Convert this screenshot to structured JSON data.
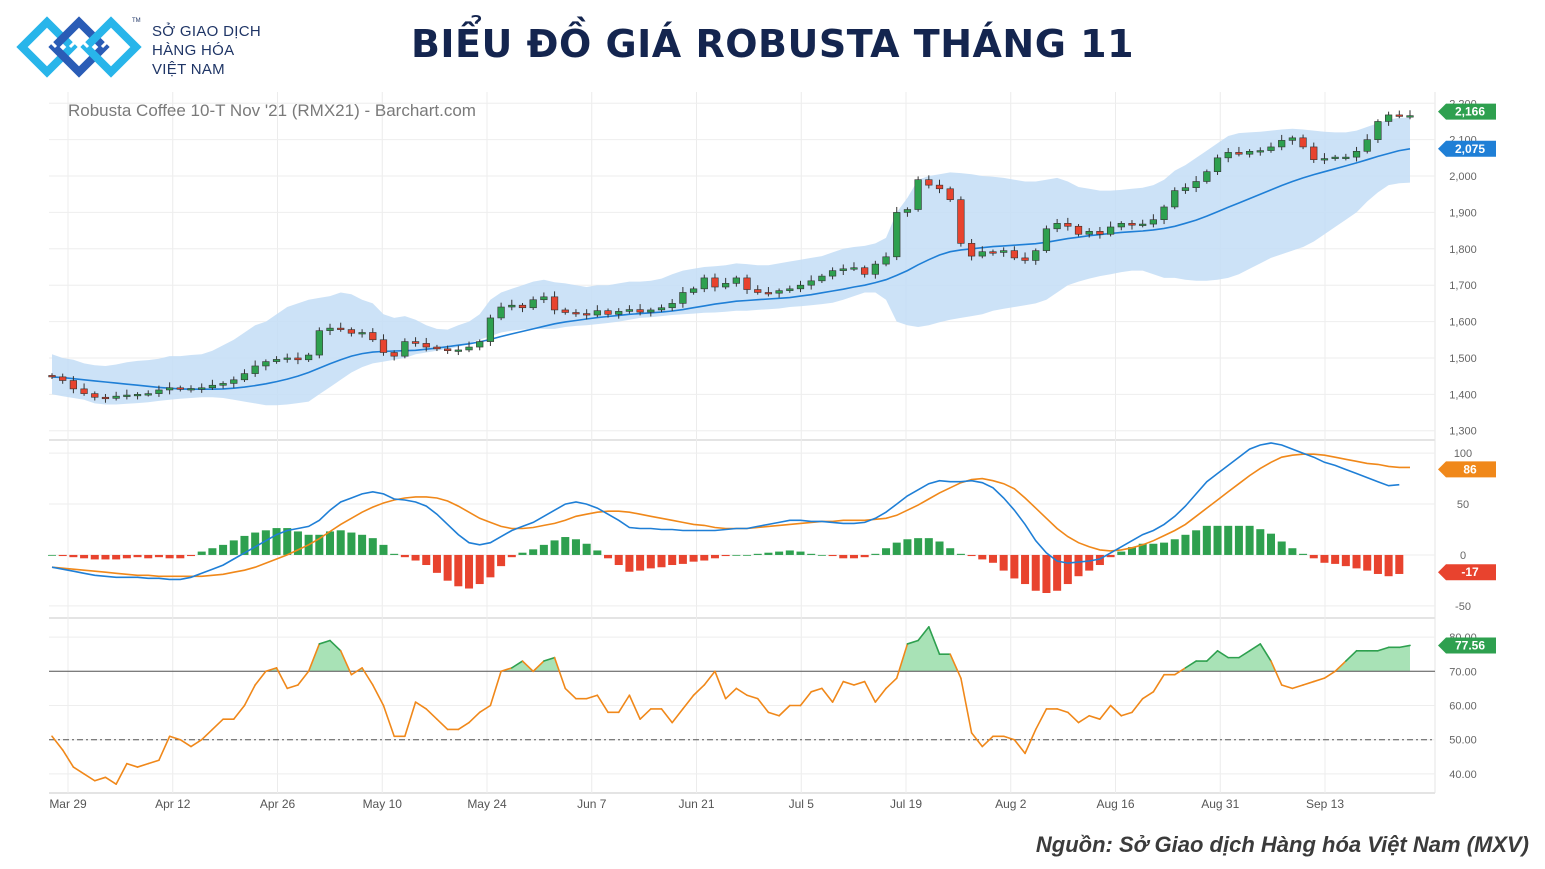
{
  "header": {
    "logo_lines": [
      "SỞ GIAO DỊCH",
      "HÀNG HÓA",
      "VIỆT NAM"
    ],
    "logo_tm": "TM",
    "title": "BIỂU ĐỒ GIÁ ROBUSTA THÁNG 11"
  },
  "footer": {
    "source": "Nguồn: Sở Giao dịch Hàng hóa Việt Nam (MXV)"
  },
  "colors": {
    "up": "#2ea04f",
    "down": "#e8432e",
    "band": "#c3ddf6",
    "ma": "#1f7fd6",
    "macd": "#1f7fd6",
    "signal": "#f0881a",
    "rsi": "#f0881a",
    "rsi_fill": "#a8e2b6"
  },
  "chart_data": [
    {
      "type": "candlestick",
      "title": "Robusta Coffee 10-T Nov '21 (RMX21) - Barchart.com",
      "ylim": [
        1280,
        2220
      ],
      "y_ticks": [
        "2,200",
        "2,100",
        "2,000",
        "1,900",
        "1,800",
        "1,700",
        "1,600",
        "1,500",
        "1,400",
        "1,300"
      ],
      "x_labels": [
        "Mar 29",
        "Apr 12",
        "Apr 26",
        "May 10",
        "May 24",
        "Jun 7",
        "Jun 21",
        "Jul 5",
        "Jul 19",
        "Aug 2",
        "Aug 16",
        "Aug 31",
        "Sep 13"
      ],
      "close": [
        1448,
        1438,
        1415,
        1402,
        1392,
        1389,
        1395,
        1398,
        1400,
        1402,
        1412,
        1418,
        1414,
        1416,
        1418,
        1425,
        1430,
        1440,
        1457,
        1478,
        1490,
        1496,
        1500,
        1495,
        1508,
        1575,
        1582,
        1578,
        1568,
        1570,
        1550,
        1515,
        1505,
        1545,
        1540,
        1530,
        1525,
        1520,
        1522,
        1530,
        1545,
        1610,
        1640,
        1645,
        1638,
        1660,
        1668,
        1632,
        1625,
        1622,
        1618,
        1630,
        1620,
        1628,
        1633,
        1626,
        1632,
        1638,
        1650,
        1680,
        1690,
        1720,
        1695,
        1705,
        1720,
        1688,
        1680,
        1678,
        1685,
        1690,
        1700,
        1712,
        1725,
        1740,
        1745,
        1748,
        1730,
        1758,
        1778,
        1900,
        1908,
        1990,
        1975,
        1965,
        1935,
        1815,
        1780,
        1792,
        1790,
        1795,
        1775,
        1768,
        1795,
        1855,
        1870,
        1862,
        1840,
        1848,
        1840,
        1860,
        1870,
        1865,
        1868,
        1880,
        1915,
        1960,
        1968,
        1985,
        2012,
        2050,
        2065,
        2060,
        2068,
        2070,
        2080,
        2098,
        2105,
        2080,
        2045,
        2048,
        2052,
        2052,
        2068,
        2100,
        2150,
        2168,
        2165,
        2166
      ],
      "prev_close_start": 1452,
      "band_upper": [
        1510,
        1500,
        1495,
        1485,
        1480,
        1478,
        1482,
        1488,
        1492,
        1494,
        1498,
        1505,
        1505,
        1508,
        1510,
        1520,
        1535,
        1550,
        1570,
        1590,
        1600,
        1620,
        1640,
        1650,
        1660,
        1665,
        1670,
        1680,
        1675,
        1660,
        1650,
        1620,
        1610,
        1615,
        1605,
        1590,
        1580,
        1578,
        1590,
        1600,
        1620,
        1660,
        1680,
        1690,
        1700,
        1710,
        1715,
        1708,
        1705,
        1700,
        1695,
        1700,
        1700,
        1705,
        1710,
        1710,
        1712,
        1718,
        1730,
        1740,
        1745,
        1750,
        1752,
        1755,
        1760,
        1758,
        1755,
        1755,
        1760,
        1765,
        1770,
        1775,
        1780,
        1790,
        1800,
        1805,
        1808,
        1815,
        1830,
        1900,
        1940,
        1990,
        2000,
        2005,
        2010,
        2008,
        2005,
        2000,
        1998,
        1995,
        1990,
        1985,
        1985,
        1990,
        1995,
        1985,
        1970,
        1965,
        1960,
        1960,
        1962,
        1965,
        1968,
        1975,
        1990,
        2015,
        2030,
        2050,
        2070,
        2090,
        2110,
        2118,
        2120,
        2122,
        2125,
        2128,
        2130,
        2128,
        2125,
        2122,
        2120,
        2120,
        2125,
        2135,
        2145,
        2155,
        2160,
        2160
      ],
      "band_lower": [
        1400,
        1395,
        1390,
        1385,
        1375,
        1372,
        1372,
        1374,
        1376,
        1378,
        1382,
        1385,
        1388,
        1390,
        1392,
        1392,
        1390,
        1385,
        1380,
        1375,
        1370,
        1370,
        1372,
        1376,
        1380,
        1400,
        1420,
        1440,
        1460,
        1475,
        1485,
        1490,
        1495,
        1500,
        1510,
        1515,
        1520,
        1525,
        1530,
        1540,
        1550,
        1560,
        1570,
        1575,
        1578,
        1580,
        1580,
        1580,
        1585,
        1588,
        1590,
        1593,
        1596,
        1600,
        1605,
        1610,
        1612,
        1615,
        1618,
        1620,
        1622,
        1624,
        1625,
        1627,
        1630,
        1630,
        1632,
        1634,
        1636,
        1640,
        1642,
        1645,
        1648,
        1652,
        1660,
        1670,
        1680,
        1680,
        1660,
        1600,
        1590,
        1585,
        1590,
        1598,
        1605,
        1610,
        1615,
        1620,
        1630,
        1635,
        1640,
        1645,
        1650,
        1660,
        1680,
        1700,
        1710,
        1718,
        1725,
        1730,
        1736,
        1740,
        1740,
        1730,
        1720,
        1720,
        1715,
        1712,
        1712,
        1715,
        1720,
        1730,
        1745,
        1760,
        1775,
        1785,
        1795,
        1805,
        1820,
        1840,
        1860,
        1880,
        1900,
        1930,
        1955,
        1975,
        1980,
        1982
      ],
      "ma": [
        1448,
        1446,
        1443,
        1440,
        1437,
        1434,
        1431,
        1428,
        1425,
        1422,
        1419,
        1417,
        1415,
        1414,
        1414,
        1414,
        1415,
        1417,
        1420,
        1424,
        1429,
        1435,
        1442,
        1450,
        1460,
        1472,
        1484,
        1495,
        1505,
        1512,
        1516,
        1518,
        1519,
        1520,
        1521,
        1524,
        1527,
        1531,
        1535,
        1539,
        1544,
        1551,
        1559,
        1566,
        1573,
        1580,
        1587,
        1594,
        1599,
        1603,
        1607,
        1611,
        1614,
        1617,
        1620,
        1622,
        1624,
        1626,
        1629,
        1633,
        1638,
        1643,
        1648,
        1652,
        1656,
        1658,
        1660,
        1662,
        1664,
        1666,
        1670,
        1674,
        1679,
        1684,
        1689,
        1695,
        1700,
        1707,
        1715,
        1727,
        1740,
        1756,
        1770,
        1783,
        1792,
        1797,
        1800,
        1803,
        1806,
        1808,
        1810,
        1812,
        1814,
        1818,
        1823,
        1828,
        1832,
        1836,
        1839,
        1842,
        1845,
        1847,
        1849,
        1852,
        1856,
        1862,
        1870,
        1879,
        1890,
        1902,
        1914,
        1926,
        1938,
        1950,
        1962,
        1974,
        1985,
        1995,
        2004,
        2012,
        2020,
        2028,
        2036,
        2045,
        2054,
        2062,
        2070,
        2075
      ],
      "labels": {
        "last_price": "2,166",
        "ma_value": "2,075"
      }
    },
    {
      "type": "line",
      "name": "MACD",
      "ylim": [
        -60,
        110
      ],
      "y_ticks": [
        "100",
        "50",
        "0",
        "-50"
      ],
      "macd": [
        -12,
        -14,
        -16,
        -18,
        -20,
        -21,
        -22,
        -22,
        -22,
        -23,
        -23,
        -24,
        -24,
        -22,
        -18,
        -14,
        -10,
        -4,
        2,
        8,
        14,
        20,
        24,
        26,
        28,
        34,
        44,
        52,
        56,
        60,
        62,
        60,
        55,
        54,
        52,
        48,
        40,
        30,
        20,
        12,
        10,
        12,
        18,
        24,
        28,
        32,
        38,
        44,
        50,
        52,
        50,
        46,
        40,
        34,
        27,
        26,
        26,
        25,
        25,
        24,
        24,
        24,
        24,
        25,
        26,
        26,
        28,
        30,
        32,
        34,
        34,
        33,
        33,
        32,
        31,
        31,
        32,
        36,
        42,
        50,
        58,
        64,
        70,
        73,
        72,
        72,
        73,
        71,
        66,
        56,
        44,
        30,
        14,
        2,
        -6,
        -8,
        -7,
        -6,
        -4,
        2,
        8,
        14,
        20,
        24,
        30,
        38,
        48,
        60,
        72,
        80,
        88,
        96,
        104,
        108,
        110,
        108,
        104,
        100,
        96,
        91,
        88,
        84,
        80,
        76,
        72,
        68,
        69
      ],
      "signal": [
        -12,
        -13,
        -14,
        -15,
        -16,
        -17,
        -18,
        -19,
        -20,
        -20,
        -21,
        -21,
        -21,
        -21,
        -21,
        -20,
        -19,
        -17,
        -15,
        -12,
        -8,
        -4,
        0,
        5,
        10,
        16,
        23,
        30,
        36,
        42,
        47,
        51,
        54,
        56,
        57,
        57,
        56,
        53,
        48,
        42,
        36,
        32,
        28,
        26,
        26,
        27,
        29,
        31,
        34,
        38,
        40,
        42,
        43,
        43,
        42,
        40,
        38,
        36,
        34,
        32,
        30,
        29,
        27,
        26,
        26,
        26,
        27,
        28,
        29,
        30,
        31,
        32,
        33,
        33,
        34,
        34,
        34,
        35,
        36,
        39,
        44,
        49,
        55,
        61,
        66,
        71,
        74,
        75,
        73,
        70,
        65,
        56,
        46,
        36,
        26,
        18,
        12,
        8,
        5,
        4,
        5,
        7,
        10,
        14,
        19,
        24,
        30,
        38,
        46,
        54,
        62,
        70,
        78,
        85,
        91,
        96,
        98,
        99,
        99,
        98,
        96,
        94,
        92,
        90,
        89,
        87,
        86,
        86
      ],
      "last_labels": {
        "signal": "86",
        "macd": "69",
        "histogram": "-17"
      }
    },
    {
      "type": "line",
      "name": "RSI",
      "ylim": [
        35,
        85
      ],
      "y_ticks": [
        "80.00",
        "70.00",
        "60.00",
        "50.00",
        "40.00"
      ],
      "reference_lines": [
        70,
        50
      ],
      "values": [
        51,
        47,
        42,
        40,
        38,
        39,
        37,
        43,
        42,
        43,
        44,
        51,
        50,
        48,
        50,
        53,
        56,
        56,
        60,
        66,
        70,
        71,
        65,
        66,
        70,
        78,
        79,
        76,
        69,
        71,
        66,
        60,
        51,
        51,
        61,
        59,
        56,
        53,
        53,
        55,
        58,
        60,
        70,
        71,
        73,
        70,
        73,
        74,
        65,
        62,
        62,
        63,
        58,
        58,
        63,
        56,
        59,
        59,
        55,
        59,
        63,
        66,
        70,
        62,
        65,
        63,
        62,
        58,
        57,
        60,
        60,
        64,
        65,
        61,
        67,
        66,
        67,
        61,
        65,
        68,
        78,
        79,
        83,
        75,
        75,
        68,
        52,
        48,
        51,
        51,
        50,
        46,
        53,
        59,
        59,
        58,
        55,
        57,
        56,
        60,
        57,
        58,
        62,
        64,
        69,
        69,
        71,
        73,
        73,
        76,
        74,
        74,
        76,
        78,
        73,
        66,
        65,
        66,
        67,
        68,
        70,
        73,
        76,
        76,
        76,
        77,
        77,
        77.56
      ],
      "last_label": "77.56"
    }
  ]
}
